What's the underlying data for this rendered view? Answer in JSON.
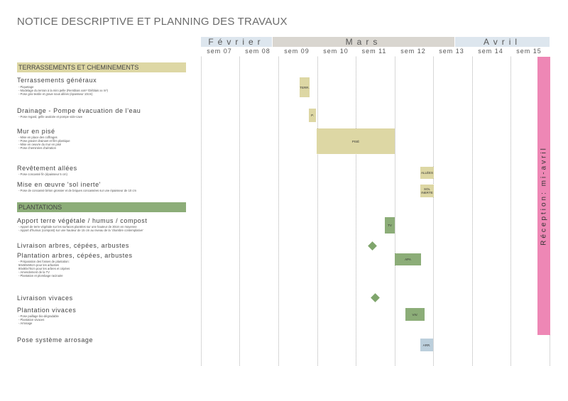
{
  "title": "NOTICE DESCRIPTIVE ET PLANNING DES TRAVAUX",
  "months": [
    {
      "label": "Février",
      "color": "#dde6ee"
    },
    {
      "label": "Mars",
      "color": "#d9d6d0"
    },
    {
      "label": "Avril",
      "color": "#dde6ee"
    }
  ],
  "weeks": [
    "sem 07",
    "sem 08",
    "sem 09",
    "sem 10",
    "sem 11",
    "sem 12",
    "sem 13",
    "sem 14",
    "sem 15"
  ],
  "sections": {
    "terrassements": {
      "label": "TERRASSEMENTS ET CHEMINEMENTS",
      "color": "#ddd7a4"
    },
    "plantations": {
      "label": "PLANTATIONS",
      "color": "#8cad78"
    }
  },
  "tasks": {
    "terr": {
      "title": "Terrassements généraux",
      "detail": "- Piquetage\n- Modelage du terrain à la mini pelle (Remblais xxm³ /Déblais xx m³)\n- Pose géo-textile et grave sous allées (épaisseur 10cm)",
      "bar": "TERR."
    },
    "drain": {
      "title": "Drainage - Pompe évacuation de l'eau",
      "detail": "- Pose regard, grille avaloire et pompe vide-cave",
      "bar": "P."
    },
    "mur": {
      "title": "Mur en pisé",
      "detail": "- Mise en place des coffrages\n- Pose gravier drainant et film plastique\n- Mise en oeuvre du mur en pisé\n- Pose cheminées d'aération",
      "bar": "PISÉ"
    },
    "allees": {
      "title": "Revêtement allées",
      "detail": "- Pose concassé fin (épaisseur 5 cm)",
      "bar": "ALLÉES"
    },
    "sol": {
      "title": "Mise en œuvre 'sol inerte'",
      "detail": "- Pose de concassé béton grossier et de briques concassées sur une épaisseur de 10 cm",
      "bar": "SOL INERTE"
    },
    "tv": {
      "title": "Apport terre végétale / humus / compost",
      "detail": "- Apport de terre végétale sur les surfaces plantées sur une hauteur de 30cm en moyenne\n- Apport d'humus (compost) sur une hauteur de 15 cm au niveau de la 'chambre contemplative'",
      "bar": "TV"
    },
    "livraison_arbres": {
      "title": "Livraison arbres, cépées, arbustes"
    },
    "plantation_arbres": {
      "title": "Plantation arbres, cépées, arbustes",
      "detail": "- Préparation des fosses de plantation:\n50x50x50cm pour les arbustes\n80x80x70cm pour les arbres et cépées\n- Amendement de la TV\n- Plantation et plombage racinaire",
      "bar": "APA"
    },
    "livraison_vivaces": {
      "title": "Livraison vivaces"
    },
    "plantation_vivaces": {
      "title": "Plantation vivaces",
      "detail": "- Pose paillage bio-dégradable\n- Plantation vivaces\n- Arrosage",
      "bar": "VIV."
    },
    "arrosage": {
      "title": "Pose système arrosage",
      "bar": "ARR."
    }
  },
  "reception": "Réception: mi-avril"
}
